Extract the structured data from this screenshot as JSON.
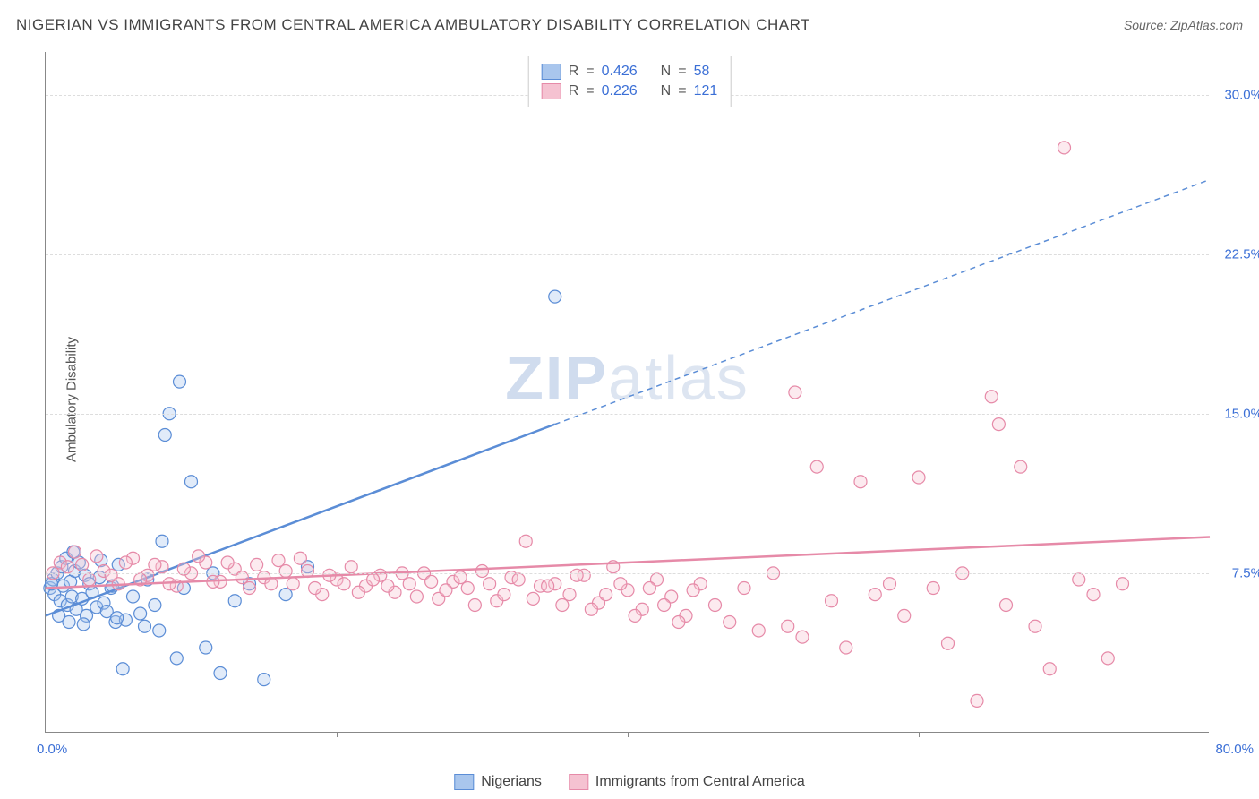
{
  "title": "NIGERIAN VS IMMIGRANTS FROM CENTRAL AMERICA AMBULATORY DISABILITY CORRELATION CHART",
  "source_label": "Source: ZipAtlas.com",
  "ylabel": "Ambulatory Disability",
  "watermark_zip": "ZIP",
  "watermark_atlas": "atlas",
  "chart": {
    "type": "scatter",
    "xlim": [
      0,
      80
    ],
    "ylim": [
      0,
      32
    ],
    "x_origin_label": "0.0%",
    "x_max_label": "80.0%",
    "yticks": [
      {
        "v": 7.5,
        "label": "7.5%"
      },
      {
        "v": 15.0,
        "label": "15.0%"
      },
      {
        "v": 22.5,
        "label": "22.5%"
      },
      {
        "v": 30.0,
        "label": "30.0%"
      }
    ],
    "xticks_minor": [
      20,
      40,
      60
    ],
    "background_color": "#ffffff",
    "grid_color": "#dddddd",
    "marker_radius": 7,
    "marker_fill_opacity": 0.35,
    "marker_stroke_width": 1.2,
    "series": [
      {
        "name": "Nigerians",
        "color_stroke": "#5b8dd6",
        "color_fill": "#a9c6ed",
        "r_value": "0.426",
        "n_value": "58",
        "points": [
          [
            0.3,
            6.8
          ],
          [
            0.5,
            7.2
          ],
          [
            0.6,
            6.5
          ],
          [
            0.8,
            7.5
          ],
          [
            1.0,
            6.2
          ],
          [
            1.1,
            7.8
          ],
          [
            1.2,
            6.9
          ],
          [
            1.4,
            8.2
          ],
          [
            1.5,
            6.0
          ],
          [
            1.7,
            7.1
          ],
          [
            1.8,
            6.4
          ],
          [
            2.0,
            7.6
          ],
          [
            2.1,
            5.8
          ],
          [
            2.3,
            8.0
          ],
          [
            2.5,
            6.3
          ],
          [
            2.7,
            7.4
          ],
          [
            2.8,
            5.5
          ],
          [
            3.0,
            7.0
          ],
          [
            3.2,
            6.6
          ],
          [
            3.5,
            5.9
          ],
          [
            3.7,
            7.3
          ],
          [
            4.0,
            6.1
          ],
          [
            4.2,
            5.7
          ],
          [
            4.5,
            6.8
          ],
          [
            4.8,
            5.2
          ],
          [
            5.0,
            7.9
          ],
          [
            5.3,
            3.0
          ],
          [
            6.0,
            6.4
          ],
          [
            6.5,
            5.6
          ],
          [
            7.0,
            7.2
          ],
          [
            7.5,
            6.0
          ],
          [
            8.0,
            9.0
          ],
          [
            8.2,
            14.0
          ],
          [
            8.5,
            15.0
          ],
          [
            9.0,
            3.5
          ],
          [
            9.2,
            16.5
          ],
          [
            9.5,
            6.8
          ],
          [
            10.0,
            11.8
          ],
          [
            11.0,
            4.0
          ],
          [
            11.5,
            7.5
          ],
          [
            12.0,
            2.8
          ],
          [
            13.0,
            6.2
          ],
          [
            14.0,
            7.0
          ],
          [
            15.0,
            2.5
          ],
          [
            16.5,
            6.5
          ],
          [
            18.0,
            7.8
          ],
          [
            35.0,
            20.5
          ],
          [
            4.6,
            6.9
          ],
          [
            5.5,
            5.3
          ],
          [
            6.8,
            5.0
          ],
          [
            1.9,
            8.5
          ],
          [
            2.6,
            5.1
          ],
          [
            3.8,
            8.1
          ],
          [
            4.9,
            5.4
          ],
          [
            7.8,
            4.8
          ],
          [
            0.4,
            7.0
          ],
          [
            0.9,
            5.5
          ],
          [
            1.6,
            5.2
          ]
        ],
        "regression": {
          "x1": 0,
          "y1": 5.5,
          "x2": 35,
          "y2": 14.5,
          "extend_to_x": 80,
          "extend_to_y": 26.0
        }
      },
      {
        "name": "Immigrants from Central America",
        "color_stroke": "#e68aa8",
        "color_fill": "#f5c2d1",
        "r_value": "0.226",
        "n_value": "121",
        "points": [
          [
            0.5,
            7.5
          ],
          [
            1.0,
            8.0
          ],
          [
            1.5,
            7.8
          ],
          [
            2.0,
            8.5
          ],
          [
            3.0,
            7.2
          ],
          [
            4.0,
            7.6
          ],
          [
            5.0,
            7.0
          ],
          [
            6.0,
            8.2
          ],
          [
            7.0,
            7.4
          ],
          [
            8.0,
            7.8
          ],
          [
            9.0,
            6.9
          ],
          [
            10.0,
            7.5
          ],
          [
            11.0,
            8.0
          ],
          [
            12.0,
            7.1
          ],
          [
            13.0,
            7.7
          ],
          [
            14.0,
            6.8
          ],
          [
            15.0,
            7.3
          ],
          [
            16.0,
            8.1
          ],
          [
            17.0,
            7.0
          ],
          [
            18.0,
            7.6
          ],
          [
            19.0,
            6.5
          ],
          [
            20.0,
            7.2
          ],
          [
            21.0,
            7.8
          ],
          [
            22.0,
            6.9
          ],
          [
            23.0,
            7.4
          ],
          [
            24.0,
            6.6
          ],
          [
            25.0,
            7.0
          ],
          [
            26.0,
            7.5
          ],
          [
            27.0,
            6.3
          ],
          [
            28.0,
            7.1
          ],
          [
            29.0,
            6.8
          ],
          [
            30.0,
            7.6
          ],
          [
            31.0,
            6.2
          ],
          [
            32.0,
            7.3
          ],
          [
            33.0,
            9.0
          ],
          [
            34.0,
            6.9
          ],
          [
            35.0,
            7.0
          ],
          [
            36.0,
            6.5
          ],
          [
            37.0,
            7.4
          ],
          [
            38.0,
            6.1
          ],
          [
            39.0,
            7.8
          ],
          [
            40.0,
            6.7
          ],
          [
            41.0,
            5.8
          ],
          [
            42.0,
            7.2
          ],
          [
            43.0,
            6.4
          ],
          [
            44.0,
            5.5
          ],
          [
            45.0,
            7.0
          ],
          [
            46.0,
            6.0
          ],
          [
            47.0,
            5.2
          ],
          [
            48.0,
            6.8
          ],
          [
            49.0,
            4.8
          ],
          [
            50.0,
            7.5
          ],
          [
            51.0,
            5.0
          ],
          [
            51.5,
            16.0
          ],
          [
            52.0,
            4.5
          ],
          [
            53.0,
            12.5
          ],
          [
            54.0,
            6.2
          ],
          [
            55.0,
            4.0
          ],
          [
            56.0,
            11.8
          ],
          [
            57.0,
            6.5
          ],
          [
            58.0,
            7.0
          ],
          [
            59.0,
            5.5
          ],
          [
            60.0,
            12.0
          ],
          [
            61.0,
            6.8
          ],
          [
            62.0,
            4.2
          ],
          [
            63.0,
            7.5
          ],
          [
            64.0,
            1.5
          ],
          [
            65.0,
            15.8
          ],
          [
            65.5,
            14.5
          ],
          [
            66.0,
            6.0
          ],
          [
            67.0,
            12.5
          ],
          [
            68.0,
            5.0
          ],
          [
            69.0,
            3.0
          ],
          [
            70.0,
            27.5
          ],
          [
            71.0,
            7.2
          ],
          [
            72.0,
            6.5
          ],
          [
            73.0,
            3.5
          ],
          [
            74.0,
            7.0
          ],
          [
            2.5,
            7.9
          ],
          [
            3.5,
            8.3
          ],
          [
            4.5,
            7.4
          ],
          [
            5.5,
            8.0
          ],
          [
            6.5,
            7.2
          ],
          [
            7.5,
            7.9
          ],
          [
            8.5,
            7.0
          ],
          [
            9.5,
            7.7
          ],
          [
            10.5,
            8.3
          ],
          [
            11.5,
            7.1
          ],
          [
            12.5,
            8.0
          ],
          [
            13.5,
            7.3
          ],
          [
            14.5,
            7.9
          ],
          [
            15.5,
            7.0
          ],
          [
            16.5,
            7.6
          ],
          [
            17.5,
            8.2
          ],
          [
            18.5,
            6.8
          ],
          [
            19.5,
            7.4
          ],
          [
            20.5,
            7.0
          ],
          [
            21.5,
            6.6
          ],
          [
            22.5,
            7.2
          ],
          [
            23.5,
            6.9
          ],
          [
            24.5,
            7.5
          ],
          [
            25.5,
            6.4
          ],
          [
            26.5,
            7.1
          ],
          [
            27.5,
            6.7
          ],
          [
            28.5,
            7.3
          ],
          [
            29.5,
            6.0
          ],
          [
            30.5,
            7.0
          ],
          [
            31.5,
            6.5
          ],
          [
            32.5,
            7.2
          ],
          [
            33.5,
            6.3
          ],
          [
            34.5,
            6.9
          ],
          [
            35.5,
            6.0
          ],
          [
            36.5,
            7.4
          ],
          [
            37.5,
            5.8
          ],
          [
            38.5,
            6.5
          ],
          [
            39.5,
            7.0
          ],
          [
            40.5,
            5.5
          ],
          [
            41.5,
            6.8
          ],
          [
            42.5,
            6.0
          ],
          [
            43.5,
            5.2
          ],
          [
            44.5,
            6.7
          ]
        ],
        "regression": {
          "x1": 0,
          "y1": 6.8,
          "x2": 80,
          "y2": 9.2
        }
      }
    ]
  },
  "legend_series1": "Nigerians",
  "legend_series2": "Immigrants from Central America"
}
